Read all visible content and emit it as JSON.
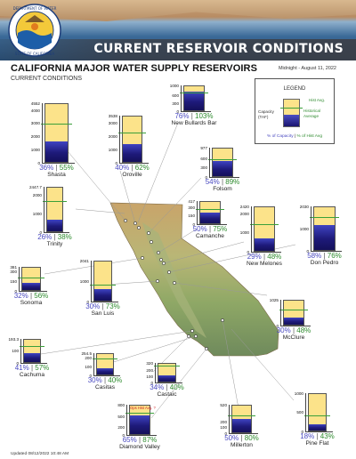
{
  "header": {
    "title": "CURRENT RESERVOIR CONDITIONS",
    "seal_text": "DEPARTMENT OF WATER RESOURCES · STATE OF CALIFORNIA"
  },
  "main_title": "CALIFORNIA MAJOR WATER SUPPLY RESERVOIRS",
  "subtitle": "CURRENT CONDITIONS",
  "date_label": "Midnight - August 11, 2022",
  "legend": {
    "title": "LEGEND",
    "capacity_label": "Capacity (TAF)",
    "hist_avg_label": "Hist Avg.",
    "historical_avg_label": "Historical Average",
    "pct_capacity_label": "% of Capacity",
    "separator": "|",
    "pct_hist_label": "% of Hist Avg"
  },
  "updated": "Updated 08/12/2022 10:48 AM",
  "colors": {
    "storage": "#1e1a7a",
    "capacity": "#fce38a",
    "historical_avg": "#3aa03a",
    "pct_capacity_text": "#4a4ac0",
    "pct_hist_text": "#2e8b2e"
  },
  "chart_data": {
    "type": "bar",
    "units": "TAF",
    "series_labels": [
      "% of Capacity",
      "% of Hist Avg"
    ],
    "reservoirs": [
      {
        "name": "Shasta",
        "capacity": 4552,
        "ticks": [
          0,
          1000,
          2000,
          3000,
          4000,
          4552
        ],
        "pct_capacity": 36,
        "pct_hist": 55
      },
      {
        "name": "Oroville",
        "capacity": 3538,
        "ticks": [
          0,
          1000,
          2000,
          3000,
          3538
        ],
        "pct_capacity": 40,
        "pct_hist": 62
      },
      {
        "name": "New Bullards Bar",
        "capacity": 1000,
        "ticks": [
          0,
          300,
          600,
          1000
        ],
        "pct_capacity": 76,
        "pct_hist": 103
      },
      {
        "name": "Folsom",
        "capacity": 977,
        "ticks": [
          0,
          300,
          600,
          977
        ],
        "pct_capacity": 54,
        "pct_hist": 89
      },
      {
        "name": "Trinity",
        "capacity": 2447.7,
        "ticks": [
          0,
          1000,
          2000,
          2447.7
        ],
        "pct_capacity": 26,
        "pct_hist": 38
      },
      {
        "name": "Camanche",
        "capacity": 417,
        "ticks": [
          0,
          150,
          300,
          417
        ],
        "pct_capacity": 50,
        "pct_hist": 75
      },
      {
        "name": "New Melones",
        "capacity": 2420,
        "ticks": [
          0,
          1000,
          2000,
          2420
        ],
        "pct_capacity": 29,
        "pct_hist": 48
      },
      {
        "name": "Don Pedro",
        "capacity": 2030,
        "ticks": [
          0,
          1000,
          2030
        ],
        "pct_capacity": 58,
        "pct_hist": 76
      },
      {
        "name": "Sonoma",
        "capacity": 381,
        "ticks": [
          0,
          150,
          300,
          381
        ],
        "pct_capacity": 32,
        "pct_hist": 56
      },
      {
        "name": "San Luis",
        "capacity": 2041,
        "ticks": [
          0,
          1000,
          2041
        ],
        "pct_capacity": 30,
        "pct_hist": 73
      },
      {
        "name": "McClure",
        "capacity": 1025,
        "ticks": [
          0,
          1025
        ],
        "pct_capacity": 30,
        "pct_hist": 48
      },
      {
        "name": "Cachuma",
        "capacity": 193.3,
        "ticks": [
          0,
          100,
          193.3
        ],
        "pct_capacity": 41,
        "pct_hist": 57
      },
      {
        "name": "Castaic",
        "capacity": 320,
        "ticks": [
          0,
          100,
          200,
          320
        ],
        "pct_capacity": 34,
        "pct_hist": 40
      },
      {
        "name": "Casitas",
        "capacity": 254.5,
        "ticks": [
          0,
          100,
          200,
          254.5
        ],
        "pct_capacity": 30,
        "pct_hist": 40
      },
      {
        "name": "Diamond Valley",
        "capacity": 810,
        "ticks": [
          0,
          200,
          500,
          800
        ],
        "pct_capacity": 65,
        "pct_hist": 87,
        "flag": "Ops Hist Avg. ?"
      },
      {
        "name": "Millerton",
        "capacity": 520,
        "ticks": [
          0,
          100,
          200,
          520
        ],
        "pct_capacity": 50,
        "pct_hist": 80
      },
      {
        "name": "Pine Flat",
        "capacity": 1000,
        "ticks": [
          0,
          500,
          1000
        ],
        "pct_capacity": 18,
        "pct_hist": 43
      }
    ]
  }
}
